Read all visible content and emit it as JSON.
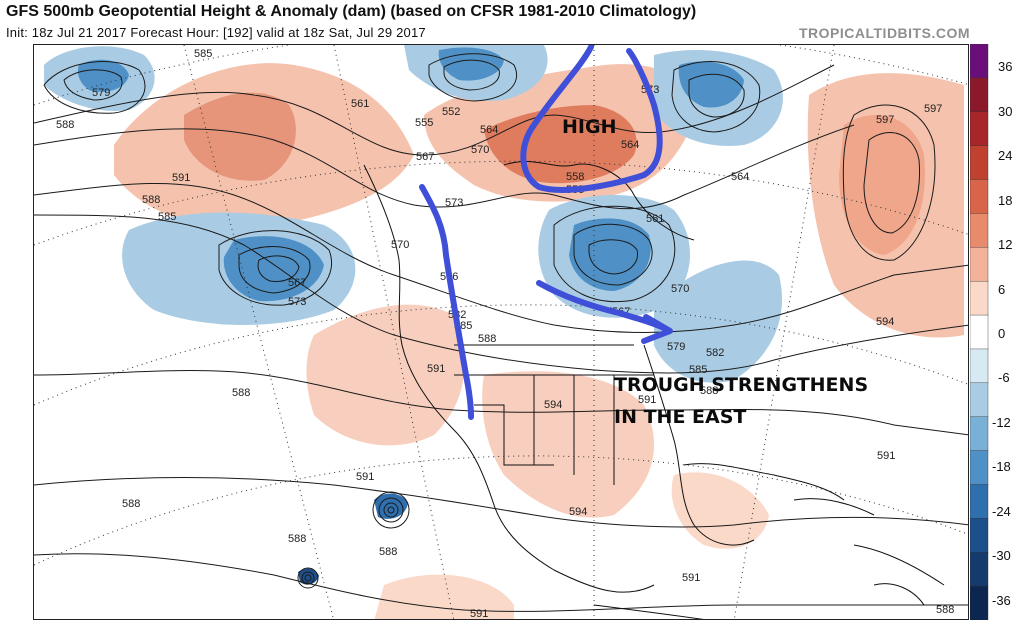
{
  "header": {
    "title": "GFS 500mb Geopotential Height & Anomaly (dam) (based on CFSR 1981-2010 Climatology)",
    "subtitle": "Init: 18z Jul 21 2017   Forecast Hour: [192]   valid at 18z Sat, Jul 29 2017",
    "brand": "TROPICALTIDBITS.COM"
  },
  "annotations": {
    "high": "HIGH",
    "trough_line1": "TROUGH STRENGTHENS",
    "trough_line2": "IN THE EAST"
  },
  "contour_labels": {
    "l585": "585",
    "l579": "579",
    "l588a": "588",
    "l591a": "591",
    "l588b": "588",
    "l585b": "585",
    "l567": "567",
    "l573": "573",
    "l570": "570",
    "l561": "561",
    "l555": "555",
    "l552": "552",
    "l564": "564",
    "l570b": "570",
    "l567b": "567",
    "l573b": "573",
    "l576": "576",
    "l582": "582",
    "l585c": "585",
    "l588c": "588",
    "l591b": "591",
    "l588d": "588",
    "l594": "594",
    "l591c": "591",
    "l555b": "555",
    "l561b": "561",
    "l567c": "567",
    "l570c": "570",
    "l579b": "579",
    "l582b": "582",
    "l585d": "585",
    "l588e": "588",
    "l564b": "564",
    "l597": "597",
    "l597b": "597",
    "l594b": "594",
    "l591d": "591",
    "l588f": "588",
    "l588g": "588",
    "l588h": "588",
    "l591e": "591",
    "l594c": "594",
    "l591f": "591",
    "l591g": "591",
    "l588i": "588",
    "l573c": "573",
    "l564c": "564",
    "l558": "558"
  },
  "colorbar": {
    "ticks": [
      "36",
      "30",
      "24",
      "18",
      "12",
      "6",
      "0",
      "-6",
      "-12",
      "-18",
      "-24",
      "-30",
      "-36"
    ],
    "colors": [
      "#6a0f7a",
      "#8a1a2a",
      "#a6262a",
      "#c0412f",
      "#d8654a",
      "#e88a6c",
      "#f3b39a",
      "#fbd9c8",
      "#ffffff",
      "#d7e9f3",
      "#a9cce4",
      "#7bb0d6",
      "#4f91c6",
      "#2f6fad",
      "#1d4f8b",
      "#143a6e",
      "#0c2650"
    ]
  },
  "palette": {
    "warm": "#f3b39a",
    "warm_strong": "#d8654a",
    "cool": "#a9cce4",
    "cool_strong": "#4f91c6",
    "annotation_stroke": "#3f4fd8",
    "contour": "#1b1b1b"
  }
}
